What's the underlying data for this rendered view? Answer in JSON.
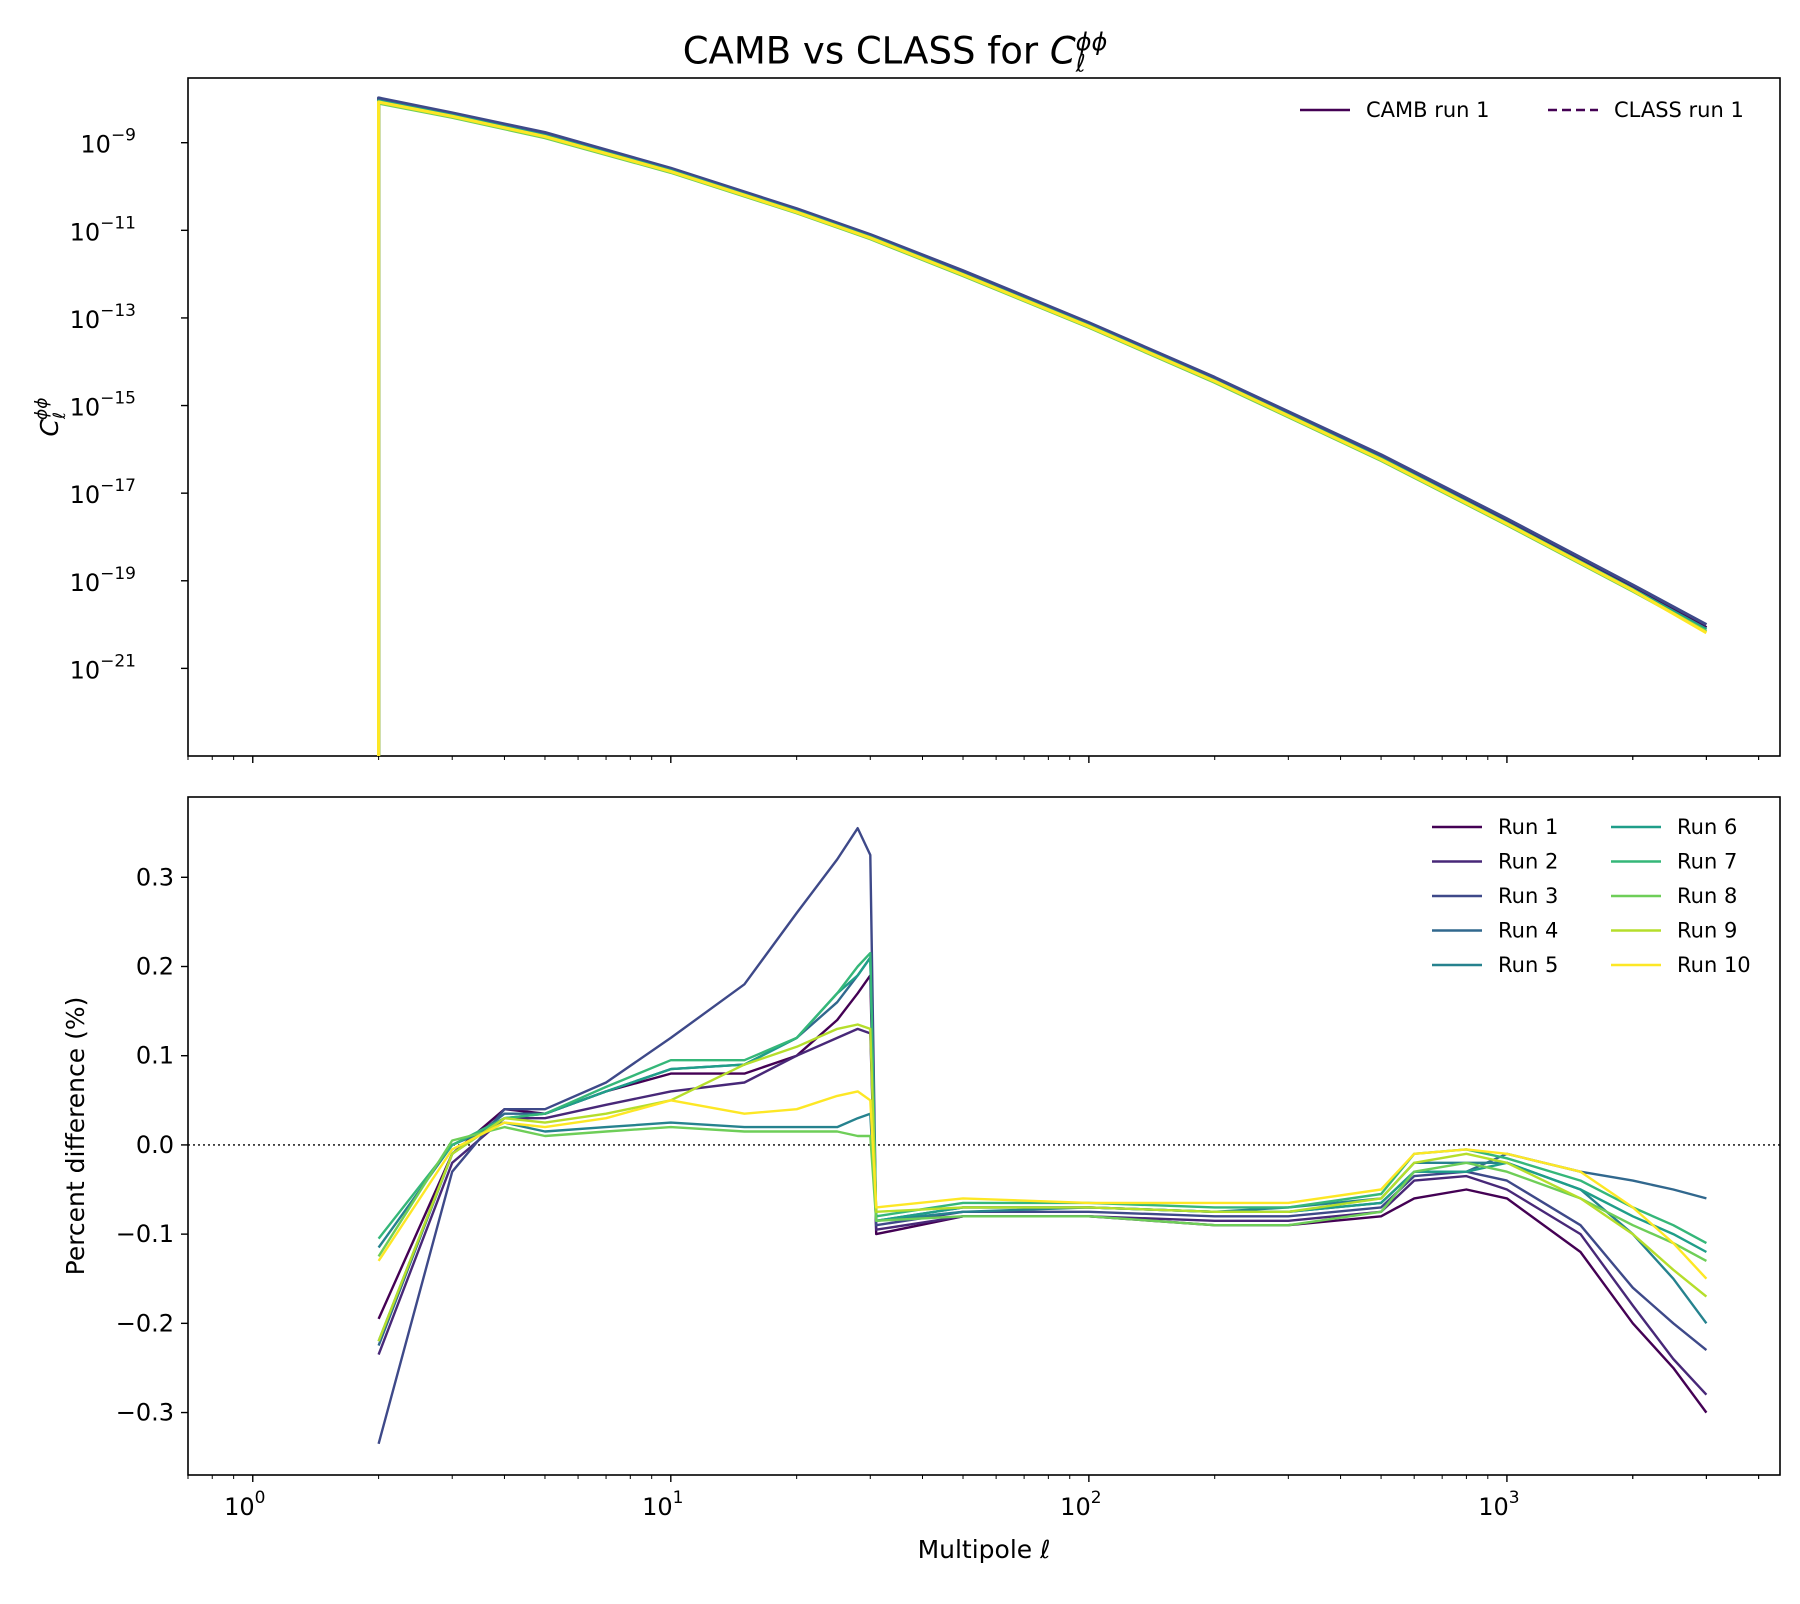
{
  "title_main": "CAMB vs CLASS for ",
  "title_symbol": "C",
  "title_sub": "ℓ",
  "title_sup": "ϕϕ",
  "colors": {
    "run_palette": [
      "#440154",
      "#482878",
      "#3e4989",
      "#31688e",
      "#26828e",
      "#1f9e89",
      "#35b779",
      "#6ece58",
      "#b5de2b",
      "#fde725"
    ],
    "zero_line": "#000000"
  },
  "chart_data": [
    {
      "type": "line",
      "panel": "top",
      "title": "CAMB vs CLASS for Cℓϕϕ",
      "xlabel": "",
      "ylabel": "Cℓϕϕ",
      "xscale": "log",
      "yscale": "log",
      "xlim": [
        0.7,
        4500
      ],
      "ylim": [
        1e-23,
        3e-08
      ],
      "yticks_exponents": [
        -9,
        -11,
        -13,
        -15,
        -17,
        -19,
        -21
      ],
      "legend": {
        "placement": "top-right",
        "ncol": 2,
        "entries": [
          {
            "label": "CAMB run 1",
            "style": "solid",
            "color": "#440154"
          },
          {
            "label": "CLASS run 1",
            "style": "dashed",
            "color": "#440154"
          }
        ]
      },
      "curve_ell": [
        2,
        3,
        5,
        10,
        20,
        30,
        50,
        100,
        200,
        500,
        1000,
        2000,
        3000
      ],
      "series": [
        {
          "code": "CAMB",
          "run": 1,
          "values": [
            1e-08,
            4.6e-09,
            1.6e-09,
            2.5e-10,
            2.9e-11,
            7.5e-12,
            1.1e-12,
            7.2e-14,
            4e-15,
            6.7e-17,
            2.3e-18,
            7e-20,
            8.5e-21
          ]
        },
        {
          "code": "CAMB",
          "run": 3,
          "values": [
            1.05e-08,
            4.8e-09,
            1.7e-09,
            2.6e-10,
            3.1e-11,
            8e-12,
            1.2e-12,
            7.8e-14,
            4.4e-15,
            7.5e-17,
            2.6e-18,
            8e-20,
            1e-20
          ]
        },
        {
          "code": "CAMB",
          "run": 6,
          "values": [
            9e-09,
            4.2e-09,
            1.45e-09,
            2.3e-10,
            2.7e-11,
            7e-12,
            1e-12,
            6.7e-14,
            3.7e-15,
            6.2e-17,
            2.1e-18,
            6.4e-20,
            7.8e-21
          ]
        },
        {
          "code": "CAMB",
          "run": 8,
          "values": [
            8e-09,
            3.8e-09,
            1.3e-09,
            2.1e-10,
            2.5e-11,
            6.4e-12,
            9.2e-13,
            6.1e-14,
            3.4e-15,
            5.6e-17,
            1.9e-18,
            5.8e-20,
            7e-21
          ]
        },
        {
          "code": "CAMB",
          "run": 10,
          "values": [
            8.5e-09,
            4e-09,
            1.38e-09,
            2.2e-10,
            2.6e-11,
            6.7e-12,
            9.7e-13,
            6.4e-14,
            3.6e-15,
            5.9e-17,
            2e-18,
            6.1e-20,
            6.5e-21
          ]
        }
      ]
    },
    {
      "type": "line",
      "panel": "bottom",
      "title": "",
      "xlabel": "Multipole ℓ",
      "ylabel": "Percent difference (%)",
      "xscale": "log",
      "yscale": "linear",
      "xlim": [
        0.7,
        4500
      ],
      "ylim": [
        -0.37,
        0.39
      ],
      "xticks": [
        "10⁰",
        "10¹",
        "10²",
        "10³"
      ],
      "yticks": [
        0.3,
        0.2,
        0.1,
        0.0,
        -0.1,
        -0.2,
        -0.3
      ],
      "reference_line": {
        "y": 0.0,
        "style": "dotted"
      },
      "legend": {
        "placement": "top-right",
        "ncol": 2
      },
      "x": [
        2,
        3,
        4,
        5,
        7,
        10,
        15,
        20,
        25,
        28,
        30,
        31,
        50,
        100,
        200,
        300,
        500,
        600,
        800,
        1000,
        1500,
        2000,
        2500,
        3000
      ],
      "series": [
        {
          "name": "Run 1",
          "values": [
            -0.195,
            -0.01,
            0.04,
            0.035,
            0.06,
            0.08,
            0.08,
            0.1,
            0.14,
            0.17,
            0.19,
            -0.1,
            -0.08,
            -0.08,
            -0.09,
            -0.09,
            -0.08,
            -0.06,
            -0.05,
            -0.06,
            -0.12,
            -0.2,
            -0.25,
            -0.3
          ]
        },
        {
          "name": "Run 2",
          "values": [
            -0.235,
            -0.02,
            0.03,
            0.03,
            0.045,
            0.06,
            0.07,
            0.1,
            0.12,
            0.13,
            0.125,
            -0.095,
            -0.08,
            -0.08,
            -0.085,
            -0.085,
            -0.075,
            -0.04,
            -0.035,
            -0.05,
            -0.1,
            -0.18,
            -0.24,
            -0.28
          ]
        },
        {
          "name": "Run 3",
          "values": [
            -0.335,
            -0.03,
            0.04,
            0.04,
            0.07,
            0.12,
            0.18,
            0.26,
            0.32,
            0.355,
            0.325,
            -0.09,
            -0.075,
            -0.075,
            -0.08,
            -0.08,
            -0.07,
            -0.035,
            -0.03,
            -0.04,
            -0.09,
            -0.16,
            -0.2,
            -0.23
          ]
        },
        {
          "name": "Run 4",
          "values": [
            -0.225,
            -0.01,
            0.035,
            0.035,
            0.06,
            0.085,
            0.09,
            0.12,
            0.16,
            0.19,
            0.21,
            -0.085,
            -0.07,
            -0.07,
            -0.075,
            -0.075,
            -0.065,
            -0.03,
            -0.03,
            -0.01,
            -0.03,
            -0.04,
            -0.05,
            -0.06
          ]
        },
        {
          "name": "Run 5",
          "values": [
            -0.115,
            0.0,
            0.025,
            0.015,
            0.02,
            0.025,
            0.02,
            0.02,
            0.02,
            0.03,
            0.035,
            -0.085,
            -0.075,
            -0.07,
            -0.075,
            -0.07,
            -0.06,
            -0.02,
            -0.02,
            -0.02,
            -0.05,
            -0.1,
            -0.15,
            -0.2
          ]
        },
        {
          "name": "Run 6",
          "values": [
            -0.22,
            -0.01,
            0.03,
            0.035,
            0.06,
            0.085,
            0.09,
            0.12,
            0.17,
            0.19,
            0.21,
            -0.085,
            -0.07,
            -0.07,
            -0.075,
            -0.075,
            -0.065,
            -0.03,
            -0.03,
            -0.02,
            -0.05,
            -0.08,
            -0.1,
            -0.12
          ]
        },
        {
          "name": "Run 7",
          "values": [
            -0.105,
            0.0,
            0.03,
            0.035,
            0.065,
            0.095,
            0.095,
            0.12,
            0.17,
            0.2,
            0.215,
            -0.08,
            -0.065,
            -0.065,
            -0.07,
            -0.07,
            -0.055,
            -0.01,
            -0.005,
            -0.015,
            -0.04,
            -0.07,
            -0.09,
            -0.11
          ]
        },
        {
          "name": "Run 8",
          "values": [
            -0.125,
            0.005,
            0.02,
            0.01,
            0.015,
            0.02,
            0.015,
            0.015,
            0.015,
            0.01,
            0.01,
            -0.085,
            -0.08,
            -0.08,
            -0.09,
            -0.09,
            -0.075,
            -0.03,
            -0.02,
            -0.03,
            -0.06,
            -0.09,
            -0.11,
            -0.13
          ]
        },
        {
          "name": "Run 9",
          "values": [
            -0.22,
            -0.01,
            0.03,
            0.025,
            0.035,
            0.05,
            0.09,
            0.11,
            0.13,
            0.135,
            0.13,
            -0.075,
            -0.07,
            -0.07,
            -0.075,
            -0.075,
            -0.06,
            -0.02,
            -0.01,
            -0.02,
            -0.06,
            -0.1,
            -0.14,
            -0.17
          ]
        },
        {
          "name": "Run 10",
          "values": [
            -0.13,
            -0.005,
            0.025,
            0.02,
            0.03,
            0.05,
            0.035,
            0.04,
            0.055,
            0.06,
            0.05,
            -0.07,
            -0.06,
            -0.065,
            -0.065,
            -0.065,
            -0.05,
            -0.01,
            -0.005,
            -0.01,
            -0.03,
            -0.07,
            -0.11,
            -0.15
          ]
        }
      ]
    }
  ]
}
